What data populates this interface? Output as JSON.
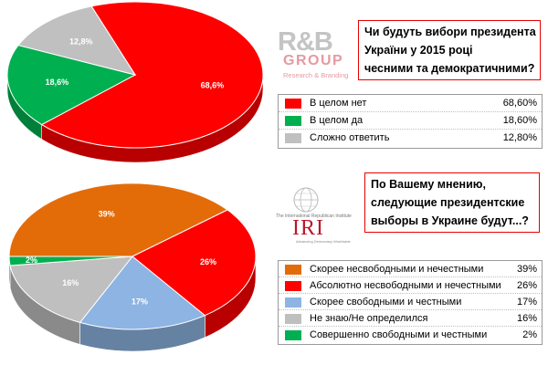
{
  "chart_data": [
    {
      "type": "pie",
      "title": "Чи будуть вибори президента України у 2015 році чесними та демократичними?",
      "title_lines": [
        "Чи будуть вибори президента",
        "України у 2015 році",
        "чесними та демократичними?"
      ],
      "slices": [
        {
          "label": "В целом нет",
          "value": 68.6,
          "label_text": "68,6%",
          "legend_value": "68,60%",
          "color": "#ff0000"
        },
        {
          "label": "В целом да",
          "value": 18.6,
          "label_text": "18,6%",
          "legend_value": "18,60%",
          "color": "#00b050"
        },
        {
          "label": "Сложно ответить",
          "value": 12.8,
          "label_text": "12,8%",
          "legend_value": "12,80%",
          "color": "#c0c0c0"
        }
      ]
    },
    {
      "type": "pie",
      "title": "По Вашему мнению, следующие президентские выборы в Украине будут...?",
      "title_lines": [
        "По Вашему мнению,",
        "следующие президентские",
        "выборы в Украине будут...?"
      ],
      "slices": [
        {
          "label": "Скорее несвободными и нечестными",
          "value": 39,
          "label_text": "39%",
          "legend_value": "39%",
          "color": "#e36c09"
        },
        {
          "label": "Абсолютно несвободными и нечестными",
          "value": 26,
          "label_text": "26%",
          "legend_value": "26%",
          "color": "#ff0000"
        },
        {
          "label": "Скорее свободными и честными",
          "value": 17,
          "label_text": "17%",
          "legend_value": "17%",
          "color": "#8db4e2"
        },
        {
          "label": "Не знаю/Не определился",
          "value": 16,
          "label_text": "16%",
          "legend_value": "16%",
          "color": "#bfbfbf"
        },
        {
          "label": "Совершенно свободными и честными",
          "value": 2,
          "label_text": "2%",
          "legend_value": "2%",
          "color": "#00b050"
        }
      ]
    }
  ],
  "logos": {
    "rb": {
      "main": "R&B",
      "group": "GROUP",
      "sub": "Research & Branding"
    },
    "iri": {
      "header": "The International Republican Institute",
      "text": "IRI",
      "footer": "Advancing Democracy Worldwide"
    }
  }
}
